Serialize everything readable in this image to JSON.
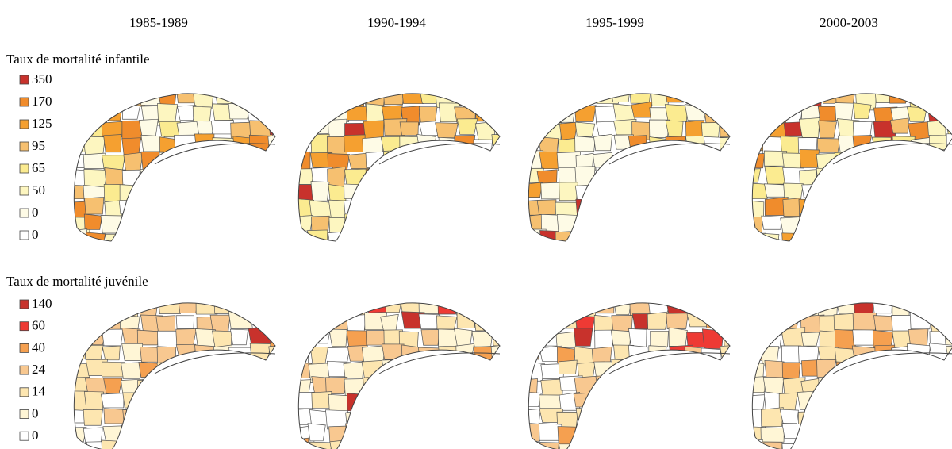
{
  "headers": [
    "1985-1989",
    "1990-1994",
    "1995-1999",
    "2000-2003"
  ],
  "sections": [
    {
      "title": "Taux de mortalité infantile",
      "legend": [
        "350",
        "170",
        "125",
        "95",
        "65",
        "50",
        "0",
        "0"
      ]
    },
    {
      "title": "Taux de mortalité juvénile",
      "legend": [
        "140",
        "60",
        "40",
        "24",
        "14",
        "0",
        "0"
      ]
    }
  ]
}
